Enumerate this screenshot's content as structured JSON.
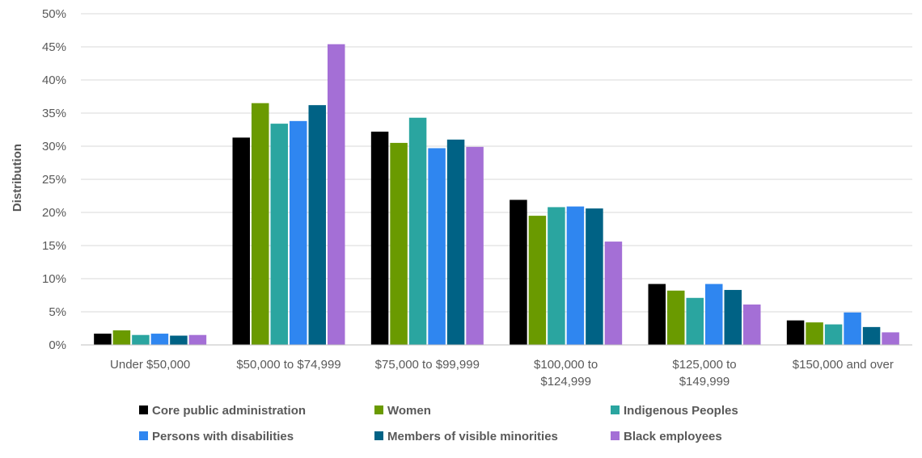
{
  "chart_data": {
    "type": "bar",
    "ylabel": "Distribution",
    "ylim": [
      0,
      50
    ],
    "yticks": [
      "0%",
      "5%",
      "10%",
      "15%",
      "20%",
      "25%",
      "30%",
      "35%",
      "40%",
      "45%",
      "50%"
    ],
    "ytick_values": [
      0,
      5,
      10,
      15,
      20,
      25,
      30,
      35,
      40,
      45,
      50
    ],
    "grid": true,
    "legend_position": "bottom",
    "categories": [
      [
        "Under $50,000"
      ],
      [
        "$50,000 to $74,999"
      ],
      [
        "$75,000 to $99,999"
      ],
      [
        "$100,000 to",
        "$124,999"
      ],
      [
        "$125,000 to",
        "$149,999"
      ],
      [
        "$150,000 and over"
      ]
    ],
    "series": [
      {
        "name": "Core public administration",
        "color": "#000000",
        "values": [
          1.7,
          31.3,
          32.2,
          21.9,
          9.2,
          3.7
        ]
      },
      {
        "name": "Women",
        "color": "#6a9a00",
        "values": [
          2.2,
          36.5,
          30.5,
          19.5,
          8.2,
          3.4
        ]
      },
      {
        "name": "Indigenous Peoples",
        "color": "#2aa5a0",
        "values": [
          1.5,
          33.4,
          34.3,
          20.8,
          7.1,
          3.1
        ]
      },
      {
        "name": "Persons with disabilities",
        "color": "#2f86f0",
        "values": [
          1.7,
          33.8,
          29.7,
          20.9,
          9.2,
          4.9
        ]
      },
      {
        "name": "Members of visible minorities",
        "color": "#006285",
        "values": [
          1.4,
          36.2,
          31.0,
          20.6,
          8.3,
          2.7
        ]
      },
      {
        "name": "Black employees",
        "color": "#a46fd6",
        "values": [
          1.5,
          45.4,
          29.9,
          15.6,
          6.1,
          1.9
        ]
      }
    ]
  }
}
